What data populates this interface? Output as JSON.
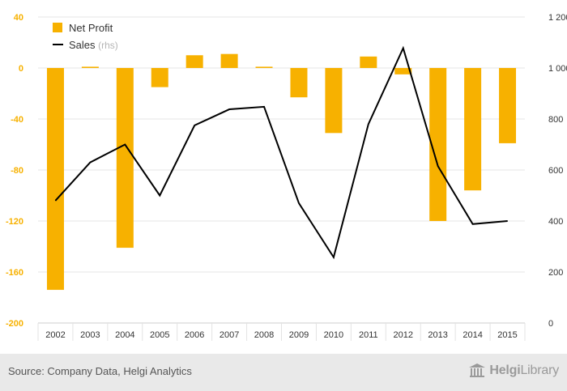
{
  "chart_data": {
    "type": "bar+line",
    "categories": [
      "2002",
      "2003",
      "2004",
      "2005",
      "2006",
      "2007",
      "2008",
      "2009",
      "2010",
      "2011",
      "2012",
      "2013",
      "2014",
      "2015"
    ],
    "series": [
      {
        "name": "Net Profit",
        "type": "bar",
        "axis": "left",
        "color": "#f7b100",
        "values": [
          -174,
          1,
          -141,
          -15,
          10,
          11,
          1,
          -23,
          -51,
          9,
          -5,
          -120,
          -96,
          -59
        ]
      },
      {
        "name": "Sales",
        "name_suffix": "(rhs)",
        "type": "line",
        "axis": "right",
        "color": "#000000",
        "values": [
          480,
          630,
          700,
          500,
          775,
          838,
          848,
          470,
          258,
          780,
          1078,
          615,
          388,
          400
        ]
      }
    ],
    "y_left": {
      "min": -200,
      "max": 40,
      "ticks": [
        "40",
        "0",
        "-40",
        "-80",
        "-120",
        "-160",
        "-200"
      ],
      "tick_values": [
        40,
        0,
        -40,
        -80,
        -120,
        -160,
        -200
      ],
      "tick_color": "#f7b100"
    },
    "y_right": {
      "min": 0,
      "max": 1200,
      "ticks": [
        "1 200",
        "1 000",
        "800",
        "600",
        "400",
        "200",
        "0"
      ],
      "tick_values": [
        1200,
        1000,
        800,
        600,
        400,
        200,
        0
      ]
    },
    "grid": true,
    "legend_position": "top-left"
  },
  "footer": {
    "source": "Source: Company Data, Helgi Analytics",
    "brand_part1": "Helgi",
    "brand_part2": "Library"
  }
}
